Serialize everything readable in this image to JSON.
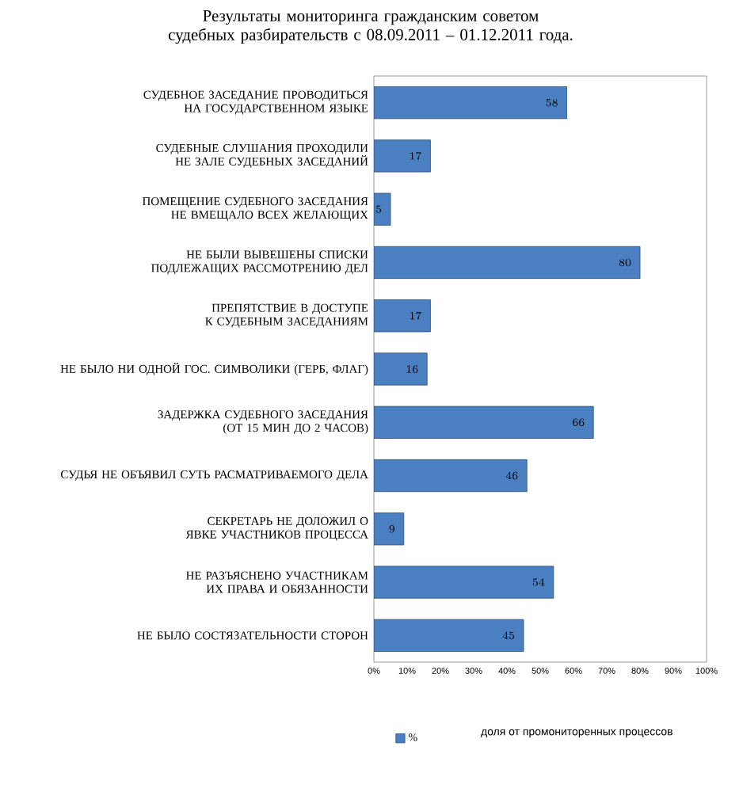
{
  "chart_data": {
    "type": "bar",
    "orientation": "horizontal",
    "title": "Результаты мониторинга гражданским советом судебных разбирательств с 08.09.2011 – 01.12.2011 года.",
    "annotations": [
      "доля от промониторенных процессов"
    ],
    "categories": [
      "СУДЕБНОЕ ЗАСЕДАНИЕ ПРОВОДИТЬСЯ НА ГОСУДАРСТВЕННОМ ЯЗЫКЕ",
      "СУДЕБНЫЕ СЛУШАНИЯ ПРОХОДИЛИ НЕ ЗАЛЕ СУДЕБНЫХ ЗАСЕДАНИЙ",
      "ПОМЕЩЕНИЕ СУДЕБНОГО ЗАСЕДАНИЯ НЕ ВМЕЩАЛО ВСЕХ ЖЕЛАЮЩИХ",
      "НЕ БЫЛИ ВЫВЕШЕНЫ СПИСКИ ПОДЛЕЖАЩИХ РАССМОТРЕНИЮ ДЕЛ",
      "ПРЕПЯТСТВИЕ В ДОСТУПЕ К СУДЕБНЫМ ЗАСЕДАНИЯМ",
      "НЕ БЫЛО НИ ОДНОЙ ГОС. СИМВОЛИКИ (ГЕРБ, ФЛАГ)",
      "ЗАДЕРЖКА СУДЕБНОГО ЗАСЕДАНИЯ (ОТ 15 МИН ДО 2 ЧАСОВ)",
      "СУДЬЯ НЕ ОБЪЯВИЛ СУТЬ РАСМАТРИВАЕМОГО ДЕЛА",
      "СЕКРЕТАРЬ НЕ ДОЛОЖИЛ О ЯВКЕ УЧАСТНИКОВ ПРОЦЕССА",
      "НЕ РАЗЪЯСНЕНО УЧАСТНИКАМ ИХ ПРАВА И ОБЯЗАННОСТИ",
      "НЕ БЫЛО СОСТЯЗАТЕЛЬНОСТИ СТОРОН"
    ],
    "series": [
      {
        "name": "%",
        "color": "#4a7fc1",
        "values": [
          58,
          17,
          5,
          80,
          17,
          16,
          66,
          46,
          9,
          54,
          45
        ]
      }
    ],
    "xlim": [
      0,
      100
    ],
    "xticks": [
      {
        "value": 0,
        "label": "0%"
      },
      {
        "value": 10,
        "label": "10%"
      },
      {
        "value": 20,
        "label": "20%"
      },
      {
        "value": 30,
        "label": "30%"
      },
      {
        "value": 40,
        "label": "40%"
      },
      {
        "value": 50,
        "label": "50%"
      },
      {
        "value": 60,
        "label": "60%"
      },
      {
        "value": 70,
        "label": "70%"
      },
      {
        "value": 80,
        "label": "80%"
      },
      {
        "value": 90,
        "label": "90%"
      },
      {
        "value": 100,
        "label": "100%"
      }
    ],
    "data_labels": true,
    "legend": "bottom",
    "grid": false
  }
}
